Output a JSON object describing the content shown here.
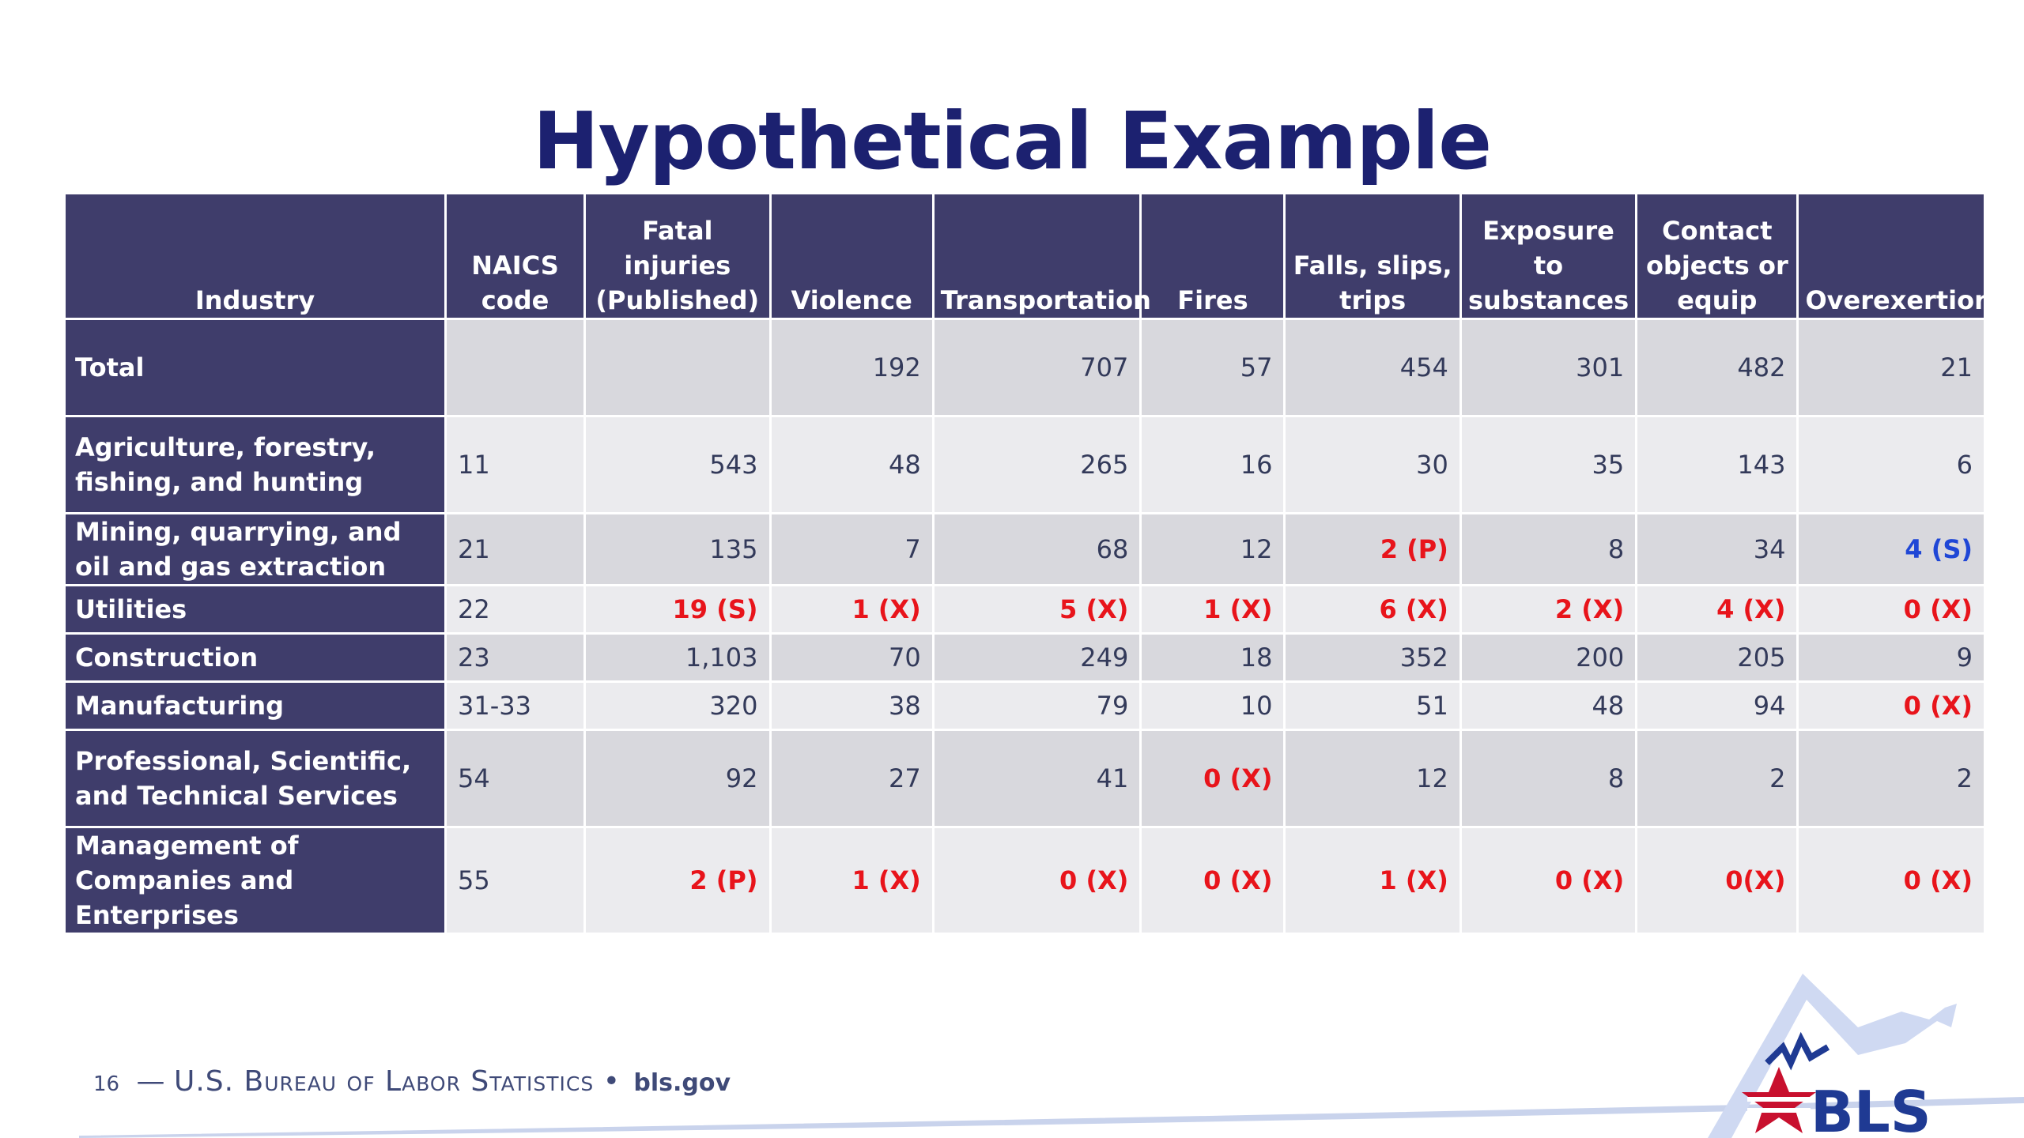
{
  "slide": {
    "title": "Hypothetical Example",
    "footer": {
      "page_number": "16",
      "dash": "—",
      "agency": "U.S. Bureau of Labor Statistics",
      "bullet": "•",
      "site": "bls.gov"
    },
    "logo_text": "BLS"
  },
  "table": {
    "headers": [
      "Industry",
      "NAICS code",
      "Fatal injuries (Published)",
      "Violence",
      "Transportation",
      "Fires",
      "Falls, slips, trips",
      "Exposure to substances",
      "Contact objects or equip",
      "Overexertion"
    ],
    "rows": [
      {
        "industry": "Total",
        "cells": [
          {
            "v": "",
            "c": ""
          },
          {
            "v": "",
            "c": ""
          },
          {
            "v": "192",
            "c": ""
          },
          {
            "v": "707",
            "c": ""
          },
          {
            "v": "57",
            "c": ""
          },
          {
            "v": "454",
            "c": ""
          },
          {
            "v": "301",
            "c": ""
          },
          {
            "v": "482",
            "c": ""
          },
          {
            "v": "21",
            "c": ""
          }
        ]
      },
      {
        "industry": "Agriculture, forestry, fishing, and hunting",
        "cells": [
          {
            "v": "11",
            "c": ""
          },
          {
            "v": "543",
            "c": ""
          },
          {
            "v": "48",
            "c": ""
          },
          {
            "v": "265",
            "c": ""
          },
          {
            "v": "16",
            "c": ""
          },
          {
            "v": "30",
            "c": ""
          },
          {
            "v": "35",
            "c": ""
          },
          {
            "v": "143",
            "c": ""
          },
          {
            "v": "6",
            "c": ""
          }
        ]
      },
      {
        "industry": "Mining, quarrying, and oil and gas extraction",
        "cells": [
          {
            "v": "21",
            "c": ""
          },
          {
            "v": "135",
            "c": ""
          },
          {
            "v": "7",
            "c": ""
          },
          {
            "v": "68",
            "c": ""
          },
          {
            "v": "12",
            "c": ""
          },
          {
            "v": "2 (P)",
            "c": "red"
          },
          {
            "v": "8",
            "c": ""
          },
          {
            "v": "34",
            "c": ""
          },
          {
            "v": "4 (S)",
            "c": "blue"
          }
        ]
      },
      {
        "industry": "Utilities",
        "cells": [
          {
            "v": "22",
            "c": ""
          },
          {
            "v": "19 (S)",
            "c": "red"
          },
          {
            "v": "1 (X)",
            "c": "red"
          },
          {
            "v": "5 (X)",
            "c": "red"
          },
          {
            "v": "1 (X)",
            "c": "red"
          },
          {
            "v": "6 (X)",
            "c": "red"
          },
          {
            "v": "2 (X)",
            "c": "red"
          },
          {
            "v": "4 (X)",
            "c": "red"
          },
          {
            "v": "0 (X)",
            "c": "red"
          }
        ]
      },
      {
        "industry": "Construction",
        "cells": [
          {
            "v": "23",
            "c": ""
          },
          {
            "v": "1,103",
            "c": ""
          },
          {
            "v": "70",
            "c": ""
          },
          {
            "v": "249",
            "c": ""
          },
          {
            "v": "18",
            "c": ""
          },
          {
            "v": "352",
            "c": ""
          },
          {
            "v": "200",
            "c": ""
          },
          {
            "v": "205",
            "c": ""
          },
          {
            "v": "9",
            "c": ""
          }
        ]
      },
      {
        "industry": "Manufacturing",
        "cells": [
          {
            "v": "31-33",
            "c": ""
          },
          {
            "v": "320",
            "c": ""
          },
          {
            "v": "38",
            "c": ""
          },
          {
            "v": "79",
            "c": ""
          },
          {
            "v": "10",
            "c": ""
          },
          {
            "v": "51",
            "c": ""
          },
          {
            "v": "48",
            "c": ""
          },
          {
            "v": "94",
            "c": ""
          },
          {
            "v": "0 (X)",
            "c": "red"
          }
        ]
      },
      {
        "industry": "Professional, Scientific, and Technical Services",
        "cells": [
          {
            "v": "54",
            "c": ""
          },
          {
            "v": "92",
            "c": ""
          },
          {
            "v": "27",
            "c": ""
          },
          {
            "v": "41",
            "c": ""
          },
          {
            "v": "0 (X)",
            "c": "red"
          },
          {
            "v": "12",
            "c": ""
          },
          {
            "v": "8",
            "c": ""
          },
          {
            "v": "2",
            "c": ""
          },
          {
            "v": "2",
            "c": ""
          }
        ]
      },
      {
        "industry": "Management of Companies and Enterprises",
        "cells": [
          {
            "v": "55",
            "c": ""
          },
          {
            "v": "2 (P)",
            "c": "red"
          },
          {
            "v": "1 (X)",
            "c": "red"
          },
          {
            "v": "0 (X)",
            "c": "red"
          },
          {
            "v": "0 (X)",
            "c": "red"
          },
          {
            "v": "1 (X)",
            "c": "red"
          },
          {
            "v": "0 (X)",
            "c": "red"
          },
          {
            "v": "0(X)",
            "c": "red"
          },
          {
            "v": "0 (X)",
            "c": "red"
          }
        ]
      }
    ]
  },
  "colors": {
    "title": "#1c2170",
    "header_bg": "#3f3d6b",
    "cell_shade_a": "#d8d8dd",
    "cell_shade_b": "#ebebee",
    "flag_red": "#e8141b",
    "flag_blue": "#1f47d6",
    "logo_red": "#c8102e",
    "logo_blue": "#1f3a93"
  }
}
